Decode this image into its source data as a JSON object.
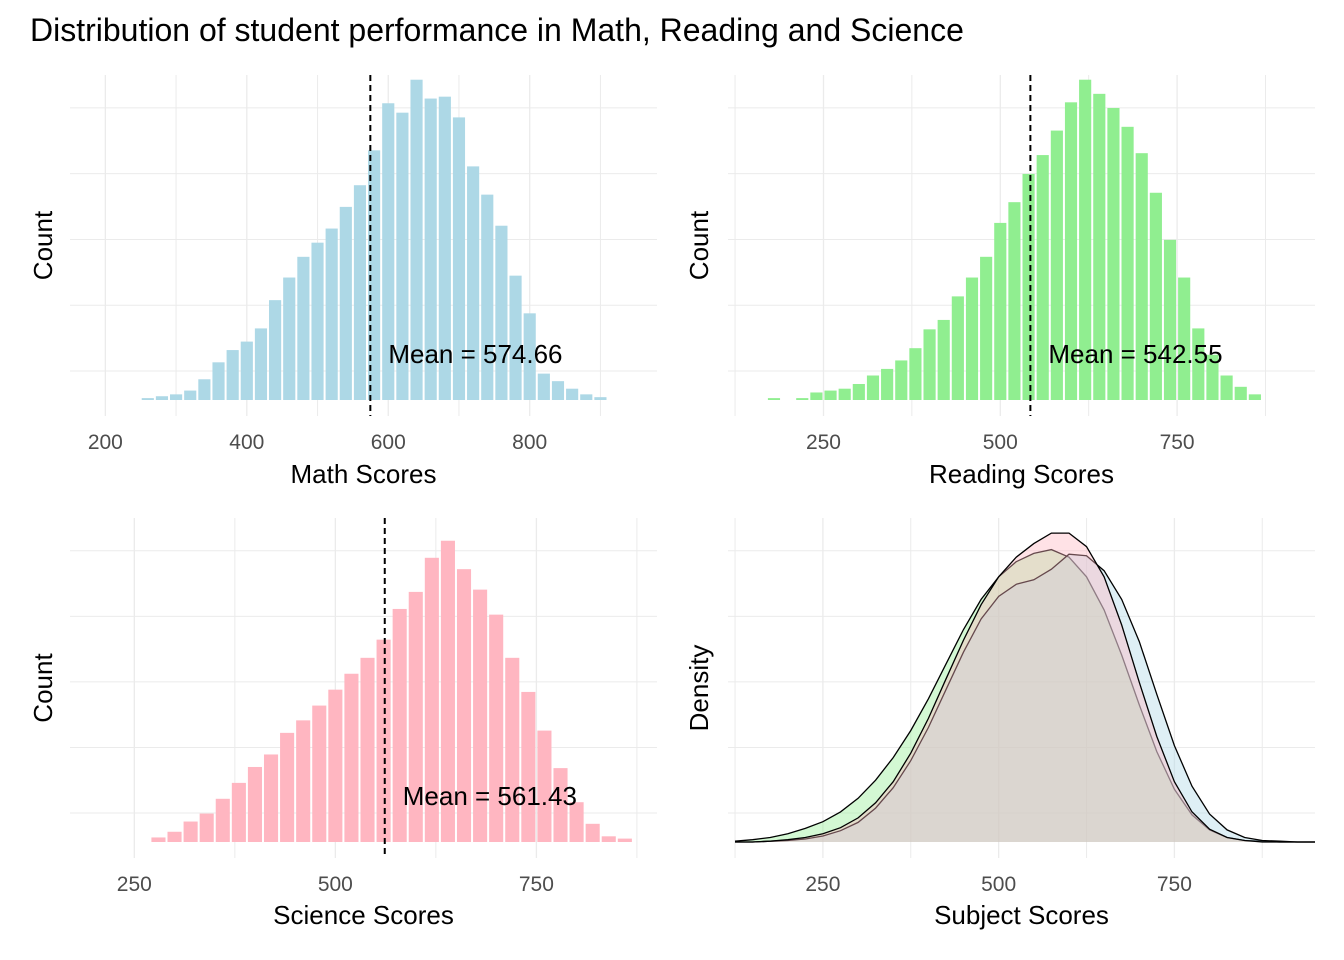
{
  "title": "Distribution of student performance in Math, Reading and Science",
  "colors": {
    "math": "#add8e6",
    "reading": "#90ee90",
    "science": "#ffb6c1",
    "grid": "#ebebeb",
    "tick_text": "#4d4d4d",
    "mean_line": "#000000"
  },
  "chart_data": [
    {
      "id": "math",
      "type": "bar",
      "subtype": "histogram",
      "xlabel": "Math Scores",
      "ylabel": "Count",
      "xlim": [
        150,
        980
      ],
      "xticks": [
        200,
        400,
        600,
        800
      ],
      "ylim": [
        0,
        345
      ],
      "color": "#add8e6",
      "bin_width": 20,
      "bin_start": 250,
      "counts": [
        2,
        4,
        6,
        10,
        22,
        40,
        53,
        62,
        76,
        106,
        130,
        152,
        167,
        182,
        205,
        228,
        265,
        315,
        305,
        340,
        320,
        322,
        300,
        248,
        218,
        185,
        132,
        92,
        28,
        20,
        12,
        6,
        3
      ],
      "mean": 574.66,
      "mean_label": "Mean = 574.66"
    },
    {
      "id": "reading",
      "type": "bar",
      "subtype": "histogram",
      "xlabel": "Reading Scores",
      "ylabel": "Count",
      "xlim": [
        115,
        945
      ],
      "xticks": [
        250,
        500,
        750
      ],
      "ylim": [
        0,
        345
      ],
      "color": "#90ee90",
      "bin_width": 20,
      "bin_start": 150,
      "counts": [
        0,
        2,
        0,
        2,
        8,
        10,
        12,
        17,
        26,
        33,
        42,
        55,
        75,
        85,
        110,
        130,
        152,
        188,
        210,
        240,
        260,
        286,
        316,
        340,
        325,
        310,
        290,
        262,
        220,
        170,
        130,
        76,
        48,
        26,
        14,
        6
      ],
      "mean": 542.55,
      "mean_label": "Mean = 542.55"
    },
    {
      "id": "science",
      "type": "bar",
      "subtype": "histogram",
      "xlabel": "Science Scores",
      "ylabel": "Count",
      "xlim": [
        170,
        900
      ],
      "xticks": [
        250,
        500,
        750
      ],
      "ylim": [
        0,
        285
      ],
      "color": "#ffb6c1",
      "bin_width": 20,
      "bin_start": 270,
      "counts": [
        4,
        9,
        18,
        25,
        38,
        52,
        66,
        77,
        96,
        107,
        120,
        134,
        148,
        162,
        178,
        205,
        220,
        250,
        265,
        240,
        222,
        200,
        162,
        132,
        98,
        65,
        35,
        16,
        5,
        3
      ],
      "mean": 561.43,
      "mean_label": "Mean = 561.43"
    },
    {
      "id": "density",
      "type": "area",
      "subtype": "density",
      "xlabel": "Subject Scores",
      "ylabel": "Density",
      "xlim": [
        115,
        950
      ],
      "xticks": [
        250,
        500,
        750
      ],
      "ylim": [
        0,
        0.0043
      ],
      "alpha": 0.4,
      "series": [
        {
          "id": "reading",
          "color": "#90ee90",
          "x": [
            125,
            150,
            175,
            200,
            225,
            250,
            275,
            300,
            325,
            350,
            375,
            400,
            425,
            450,
            475,
            500,
            525,
            550,
            575,
            600,
            625,
            650,
            675,
            700,
            725,
            750,
            775,
            800,
            825,
            850,
            875,
            900,
            925,
            950
          ],
          "y": [
            1e-05,
            3e-05,
            6e-05,
            0.00011,
            0.00018,
            0.00027,
            0.0004,
            0.00058,
            0.00082,
            0.00112,
            0.00148,
            0.0019,
            0.00236,
            0.00282,
            0.00322,
            0.00352,
            0.00372,
            0.00383,
            0.00388,
            0.00378,
            0.00352,
            0.00308,
            0.00248,
            0.00182,
            0.0012,
            0.0007,
            0.00036,
            0.00016,
            6e-05,
            2e-05,
            1e-05,
            0,
            0,
            0
          ]
        },
        {
          "id": "math",
          "color": "#add8e6",
          "x": [
            125,
            150,
            175,
            200,
            225,
            250,
            275,
            300,
            325,
            350,
            375,
            400,
            425,
            450,
            475,
            500,
            525,
            550,
            575,
            600,
            625,
            650,
            675,
            700,
            725,
            750,
            775,
            800,
            825,
            850,
            875,
            900,
            925,
            950
          ],
          "y": [
            0,
            0,
            1e-05,
            2e-05,
            4e-05,
            8e-05,
            0.00015,
            0.00026,
            0.00045,
            0.00072,
            0.00108,
            0.00152,
            0.00202,
            0.00252,
            0.00296,
            0.00326,
            0.00342,
            0.00348,
            0.00362,
            0.00382,
            0.0038,
            0.0036,
            0.00322,
            0.00266,
            0.00196,
            0.00128,
            0.00074,
            0.00037,
            0.00016,
            6e-05,
            2e-05,
            1e-05,
            0,
            0
          ]
        },
        {
          "id": "science",
          "color": "#ffb6c1",
          "x": [
            125,
            150,
            175,
            200,
            225,
            250,
            275,
            300,
            325,
            350,
            375,
            400,
            425,
            450,
            475,
            500,
            525,
            550,
            575,
            600,
            625,
            650,
            675,
            700,
            725,
            750,
            775,
            800,
            825,
            850,
            875,
            900,
            925,
            950
          ],
          "y": [
            0,
            0,
            1e-05,
            3e-05,
            6e-05,
            0.00011,
            0.00019,
            0.00032,
            0.00052,
            0.0008,
            0.00118,
            0.00164,
            0.00216,
            0.00268,
            0.00315,
            0.00352,
            0.00378,
            0.00396,
            0.0041,
            0.0041,
            0.00392,
            0.00352,
            0.00288,
            0.00212,
            0.0014,
            0.0008,
            0.0004,
            0.00017,
            6e-05,
            2e-05,
            0,
            0,
            0,
            0
          ]
        }
      ]
    }
  ]
}
